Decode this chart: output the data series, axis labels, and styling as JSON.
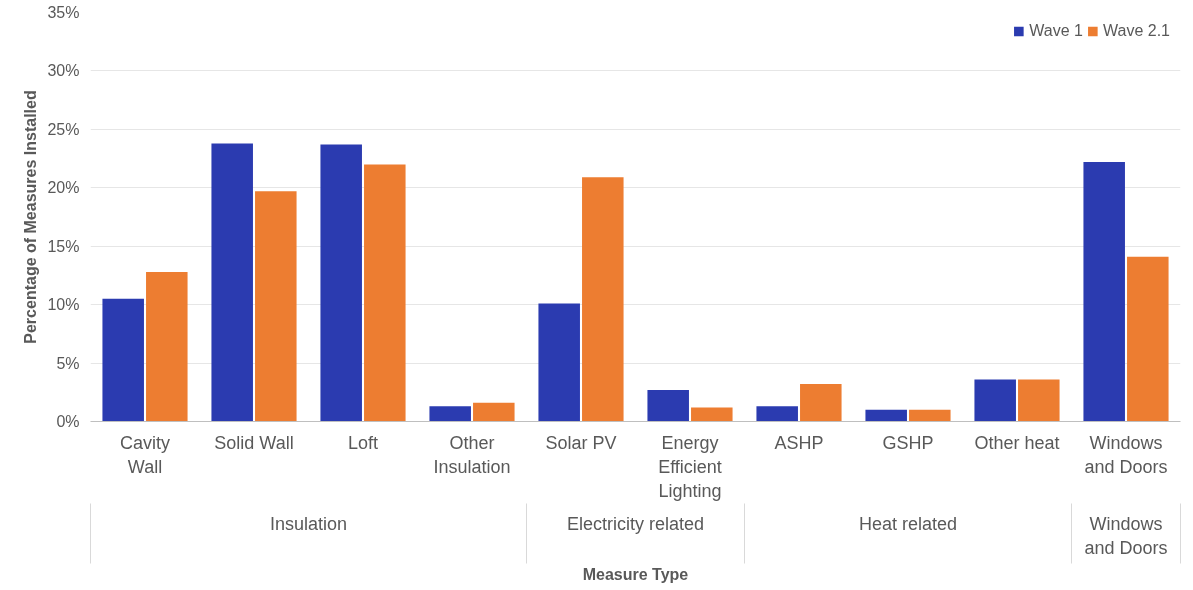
{
  "chart_data": {
    "type": "bar",
    "xlabel": "Measure Type",
    "ylabel": "Percentage of Measures Installed",
    "categories": [
      "Cavity Wall",
      "Solid Wall",
      "Loft",
      "Other Insulation",
      "Solar PV",
      "Energy Efficient Lighting",
      "ASHP",
      "GSHP",
      "Other heat",
      "Windows and Doors"
    ],
    "series": [
      {
        "name": "Wave 1",
        "color": "#2b3bb0",
        "values": [
          10.5,
          23.8,
          23.7,
          1.3,
          10.1,
          2.7,
          1.3,
          1.0,
          3.6,
          22.2
        ]
      },
      {
        "name": "Wave 2.1",
        "color": "#ed7d31",
        "values": [
          12.8,
          19.7,
          22.0,
          1.6,
          20.9,
          1.2,
          3.2,
          1.0,
          3.6,
          14.1
        ]
      }
    ],
    "ylim": [
      0,
      35
    ],
    "yticks": [
      {
        "value": 0,
        "label": "0%"
      },
      {
        "value": 5,
        "label": "5%"
      },
      {
        "value": 10,
        "label": "10%"
      },
      {
        "value": 15,
        "label": "15%"
      },
      {
        "value": 20,
        "label": "20%"
      },
      {
        "value": 25,
        "label": "25%"
      },
      {
        "value": 30,
        "label": "30%"
      },
      {
        "value": 35,
        "label": "35%"
      }
    ],
    "annotations": [
      "Insulation",
      "Electricity related",
      "Heat related",
      "Windows and Doors"
    ],
    "grid": "y",
    "legend": "top right"
  }
}
